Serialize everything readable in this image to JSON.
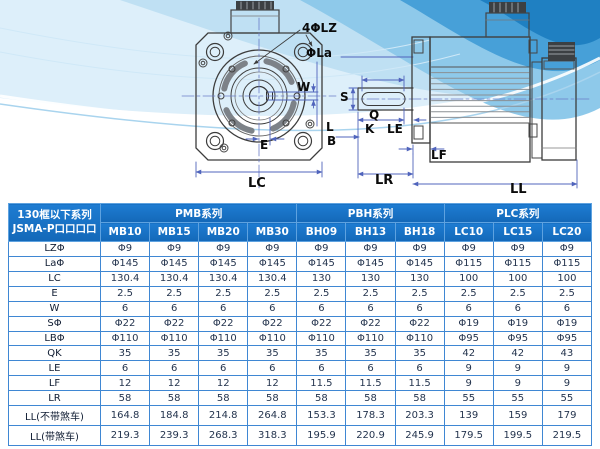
{
  "diagram": {
    "front_view": {
      "labels": {
        "bolt_holes": "4ΦLZ",
        "flange_dia": "ΦLa",
        "key_width": "W",
        "offset_e": "E",
        "frame_width": "LC"
      }
    },
    "side_view": {
      "labels": {
        "shaft_dia": "S",
        "shaft_len_q": "Q",
        "key_len_k": "K",
        "pilot_le": "LE",
        "dim_l": "L",
        "dim_b": "B",
        "flange_thk_lf": "LF",
        "shaft_ext_lr": "LR",
        "total_len_ll": "LL"
      }
    }
  },
  "table": {
    "corner": {
      "line1": "130框以下系列",
      "line2": "JSMA-P口口口口"
    },
    "groups": [
      {
        "label": "PMB系列",
        "span": 4
      },
      {
        "label": "PBH系列",
        "span": 3
      },
      {
        "label": "PLC系列",
        "span": 3
      }
    ],
    "columns": [
      "MB10",
      "MB15",
      "MB20",
      "MB30",
      "BH09",
      "BH13",
      "BH18",
      "LC10",
      "LC15",
      "LC20"
    ],
    "rows": [
      {
        "label": "LZΦ",
        "values": [
          "Φ9",
          "Φ9",
          "Φ9",
          "Φ9",
          "Φ9",
          "Φ9",
          "Φ9",
          "Φ9",
          "Φ9",
          "Φ9"
        ]
      },
      {
        "label": "LaΦ",
        "values": [
          "Φ145",
          "Φ145",
          "Φ145",
          "Φ145",
          "Φ145",
          "Φ145",
          "Φ145",
          "Φ115",
          "Φ115",
          "Φ115"
        ]
      },
      {
        "label": "LC",
        "values": [
          "130.4",
          "130.4",
          "130.4",
          "130.4",
          "130",
          "130",
          "130",
          "100",
          "100",
          "100"
        ]
      },
      {
        "label": "E",
        "values": [
          "2.5",
          "2.5",
          "2.5",
          "2.5",
          "2.5",
          "2.5",
          "2.5",
          "2.5",
          "2.5",
          "2.5"
        ]
      },
      {
        "label": "W",
        "values": [
          "6",
          "6",
          "6",
          "6",
          "6",
          "6",
          "6",
          "6",
          "6",
          "6"
        ]
      },
      {
        "label": "SΦ",
        "values": [
          "Φ22",
          "Φ22",
          "Φ22",
          "Φ22",
          "Φ22",
          "Φ22",
          "Φ22",
          "Φ19",
          "Φ19",
          "Φ19"
        ]
      },
      {
        "label": "LBΦ",
        "values": [
          "Φ110",
          "Φ110",
          "Φ110",
          "Φ110",
          "Φ110",
          "Φ110",
          "Φ110",
          "Φ95",
          "Φ95",
          "Φ95"
        ]
      },
      {
        "label": "QK",
        "values": [
          "35",
          "35",
          "35",
          "35",
          "35",
          "35",
          "35",
          "42",
          "42",
          "43"
        ]
      },
      {
        "label": "LE",
        "values": [
          "6",
          "6",
          "6",
          "6",
          "6",
          "6",
          "6",
          "9",
          "9",
          "9"
        ]
      },
      {
        "label": "LF",
        "values": [
          "12",
          "12",
          "12",
          "12",
          "11.5",
          "11.5",
          "11.5",
          "9",
          "9",
          "9"
        ]
      },
      {
        "label": "LR",
        "values": [
          "58",
          "58",
          "58",
          "58",
          "58",
          "58",
          "58",
          "55",
          "55",
          "55"
        ]
      },
      {
        "label": "LL(不带煞车)",
        "values": [
          "164.8",
          "184.8",
          "214.8",
          "264.8",
          "153.3",
          "178.3",
          "203.3",
          "139",
          "159",
          "179"
        ]
      },
      {
        "label": "LL(带煞车)",
        "values": [
          "219.3",
          "239.3",
          "268.3",
          "318.3",
          "195.9",
          "220.9",
          "245.9",
          "179.5",
          "199.5",
          "219.5"
        ]
      }
    ]
  },
  "colors": {
    "header_blue": "#1a74ca",
    "table_border_blue": "#3f87d3",
    "dimension_blue": "#5064bc",
    "wave_deep_blue": "#1f80c2"
  }
}
